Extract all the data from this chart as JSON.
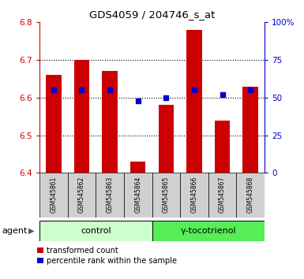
{
  "title": "GDS4059 / 204746_s_at",
  "samples": [
    "GSM545861",
    "GSM545862",
    "GSM545863",
    "GSM545864",
    "GSM545865",
    "GSM545866",
    "GSM545867",
    "GSM545868"
  ],
  "red_values": [
    6.66,
    6.7,
    6.67,
    6.43,
    6.58,
    6.78,
    6.54,
    6.63
  ],
  "blue_values": [
    55,
    55,
    55,
    48,
    50,
    55,
    52,
    55
  ],
  "y_min": 6.4,
  "y_max": 6.8,
  "y_ticks": [
    6.4,
    6.5,
    6.6,
    6.7,
    6.8
  ],
  "right_y_ticks": [
    0,
    25,
    50,
    75,
    100
  ],
  "right_y_labels": [
    "0",
    "25",
    "50",
    "75",
    "100%"
  ],
  "control_samples": 4,
  "group_labels": [
    "control",
    "γ-tocotrienol"
  ],
  "bar_color": "#cc0000",
  "blue_color": "#0000cc",
  "control_light_green": "#ccffcc",
  "control_bright_green": "#55ee55",
  "agent_label": "agent",
  "legend_items": [
    "transformed count",
    "percentile rank within the sample"
  ],
  "bar_width": 0.55,
  "base_value": 6.4,
  "yaxis_color_left": "#cc0000",
  "yaxis_color_right": "#0000cc",
  "sample_bg": "#d0d0d0",
  "grid_dotted_ticks": [
    6.5,
    6.6,
    6.7
  ]
}
